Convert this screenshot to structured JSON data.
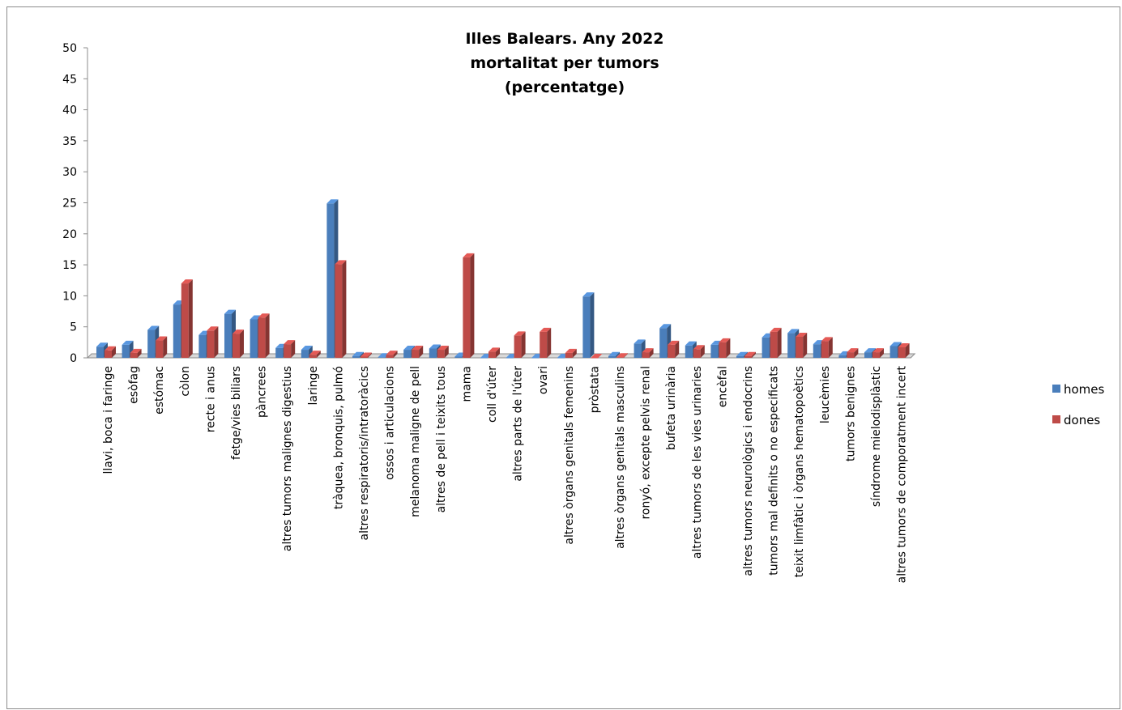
{
  "chart_data": {
    "type": "bar",
    "title_lines": [
      "Illes Balears. Any 2022",
      "mortalitat per tumors",
      "(percentatge)"
    ],
    "xlabel": "",
    "ylabel": "",
    "ylim": [
      0,
      50
    ],
    "yticks": [
      0,
      5,
      10,
      15,
      20,
      25,
      30,
      35,
      40,
      45,
      50
    ],
    "grid": false,
    "legend_position": "right",
    "categories": [
      "llavi, boca i faringe",
      "esòfag",
      "estómac",
      "còlon",
      "recte i anus",
      "fetge/vies biliars",
      "pàncrees",
      "altres tumors malignes digestius",
      "laringe",
      "tràquea, bronquis, pulmó",
      "altres respiratoris/intratoràcics",
      "ossos i articulacions",
      "melanoma maligne de pell",
      "altres de pell i teixits tous",
      "mama",
      "coll d'úter",
      "altres parts de l'úter",
      "ovari",
      "altres òrgans genitals femenins",
      "pròstata",
      "altres òrgans genitals masculins",
      "ronyó, excepte pelvis renal",
      "bufeta urinària",
      "altres tumors de les vies urinaries",
      "encèfal",
      "altres tumors neurològics i endocrins",
      "tumors mal definits o no especificats",
      "teixit limfàtic i òrgans hematopoètics",
      "leucèmies",
      "tumors benignes",
      "síndrome mielodisplàstic",
      "altres tumors de comporatment incert"
    ],
    "series": [
      {
        "name": "homes",
        "color": "#4a7ebb",
        "values": [
          1.8,
          2.1,
          4.5,
          8.6,
          3.7,
          7.1,
          6.2,
          1.6,
          1.3,
          24.9,
          0.3,
          0.1,
          1.3,
          1.5,
          0.2,
          0.0,
          0.0,
          0.0,
          0.0,
          9.9,
          0.3,
          2.3,
          4.8,
          2.0,
          2.1,
          0.3,
          3.3,
          4.0,
          2.2,
          0.4,
          0.9,
          1.9
        ]
      },
      {
        "name": "dones",
        "color": "#be4b48",
        "values": [
          1.2,
          0.8,
          2.8,
          12.0,
          4.4,
          3.9,
          6.5,
          2.2,
          0.5,
          15.1,
          0.2,
          0.5,
          1.3,
          1.3,
          16.2,
          1.0,
          3.6,
          4.2,
          0.8,
          0.0,
          0.1,
          0.9,
          2.1,
          1.4,
          2.5,
          0.3,
          4.2,
          3.4,
          2.7,
          0.9,
          0.9,
          1.7
        ]
      }
    ]
  }
}
